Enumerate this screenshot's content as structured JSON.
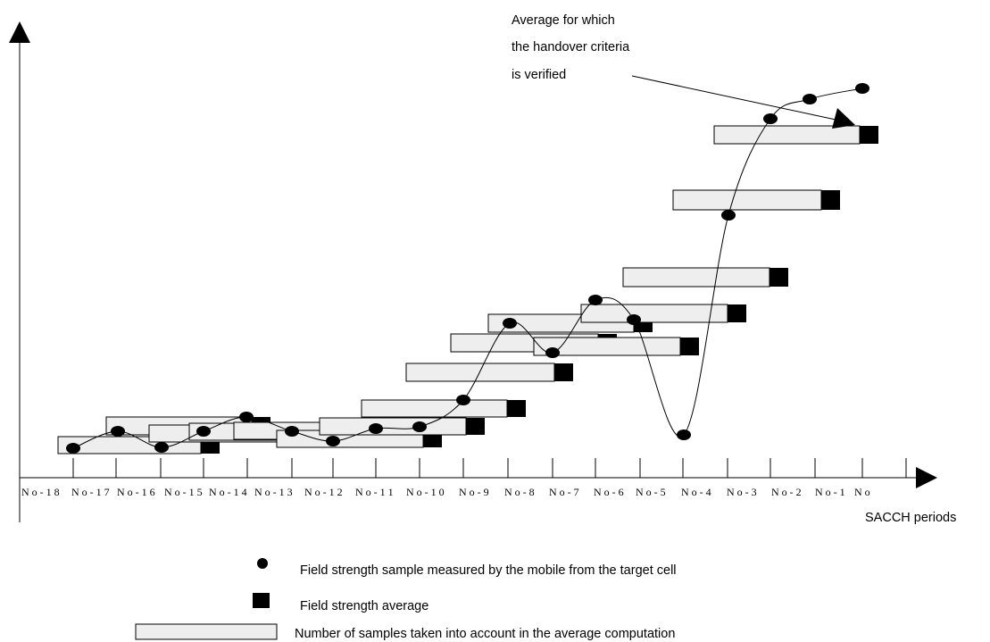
{
  "annotation": {
    "lines": [
      "Average for which",
      "the handover criteria",
      "is verified"
    ]
  },
  "axes": {
    "x_label": "SACCH periods",
    "tick_labels": [
      "N o - 1 8",
      "N o - 1 7",
      "N o - 1 6",
      "N o - 1 5",
      "N o - 1 4",
      "N o - 1 3",
      "N o - 1 2",
      "N o - 1 1",
      "N o - 1 0",
      "N o - 9",
      "N o - 8",
      "N o - 7",
      "N o - 6",
      "N o - 5",
      "N o - 4",
      "N o - 3",
      "N o - 2",
      "N o - 1",
      "N o"
    ]
  },
  "legend": {
    "sample": "Field strength sample measured by the mobile from the target cell",
    "average": "Field strength average",
    "window": "Number of samples taken into account in the average computation"
  }
}
